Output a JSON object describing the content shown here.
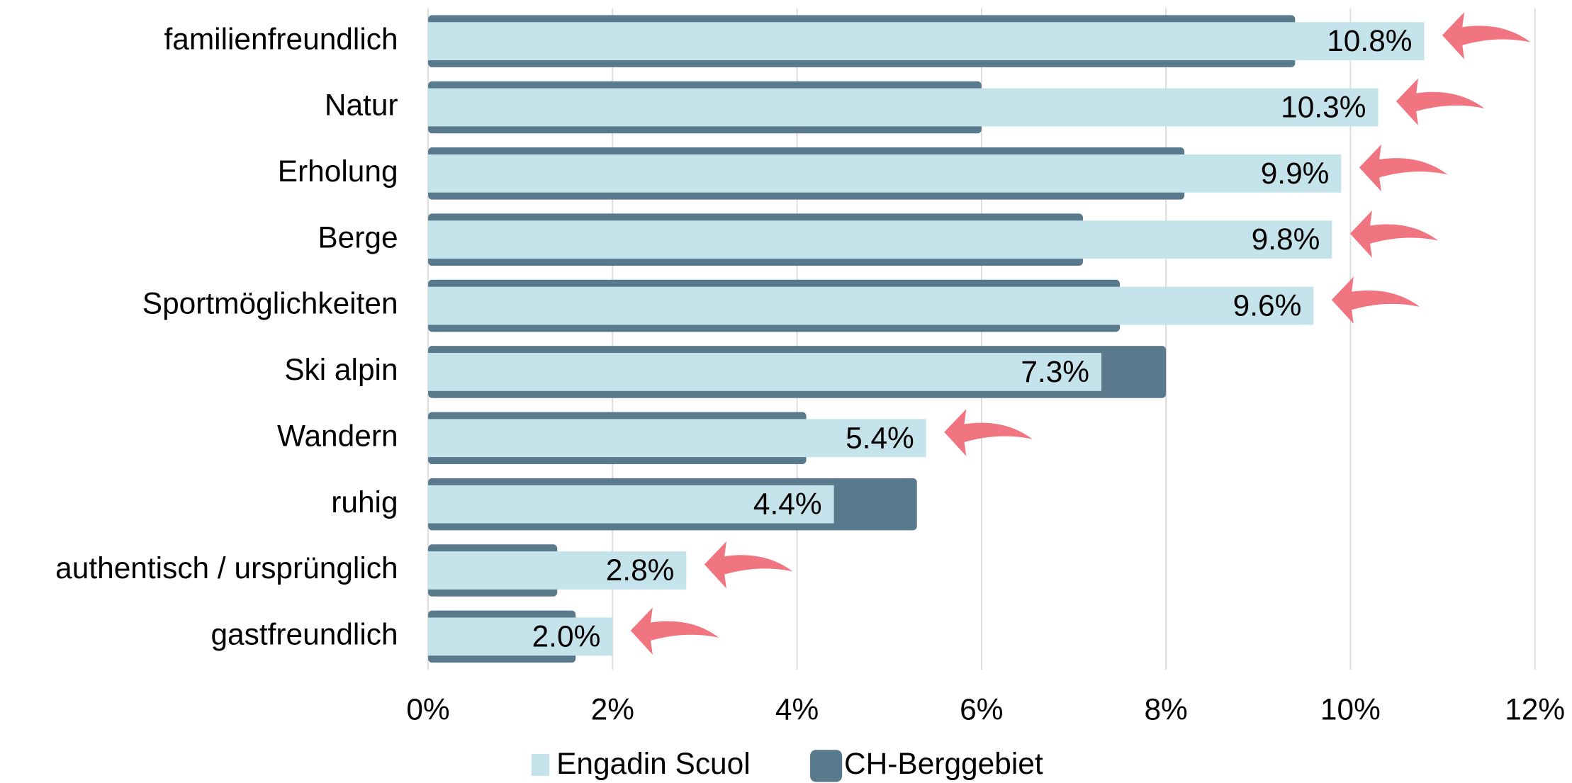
{
  "chart_data": {
    "type": "bar",
    "orientation": "horizontal",
    "overlap": true,
    "categories": [
      "familienfreundlich",
      "Natur",
      "Erholung",
      "Berge",
      "Sportmöglichkeiten",
      "Ski alpin",
      "Wandern",
      "ruhig",
      "authentisch / ursprünglich",
      "gastfreundlich"
    ],
    "series": [
      {
        "name": "Engadin Scuol",
        "color": "#c5e3ea",
        "values": [
          10.8,
          10.3,
          9.9,
          9.8,
          9.6,
          7.3,
          5.4,
          4.4,
          2.8,
          2.0
        ],
        "value_labels": [
          "10.8%",
          "10.3%",
          "9.9%",
          "9.8%",
          "9.6%",
          "7.3%",
          "5.4%",
          "4.4%",
          "2.8%",
          "2.0%"
        ]
      },
      {
        "name": "CH-Berggebiet",
        "color": "#587a8c",
        "values": [
          9.4,
          6.0,
          8.2,
          7.1,
          7.5,
          8.0,
          4.1,
          5.3,
          1.4,
          1.6
        ]
      }
    ],
    "xlim": [
      0,
      12
    ],
    "xticks": [
      {
        "value": 0,
        "label": "0%"
      },
      {
        "value": 2,
        "label": "2%"
      },
      {
        "value": 4,
        "label": "4%"
      },
      {
        "value": 6,
        "label": "6%"
      },
      {
        "value": 8,
        "label": "8%"
      },
      {
        "value": 10,
        "label": "10%"
      },
      {
        "value": 12,
        "label": "12%"
      }
    ],
    "grid": true,
    "legend": "bottom",
    "arrow_color": "#f07580"
  }
}
